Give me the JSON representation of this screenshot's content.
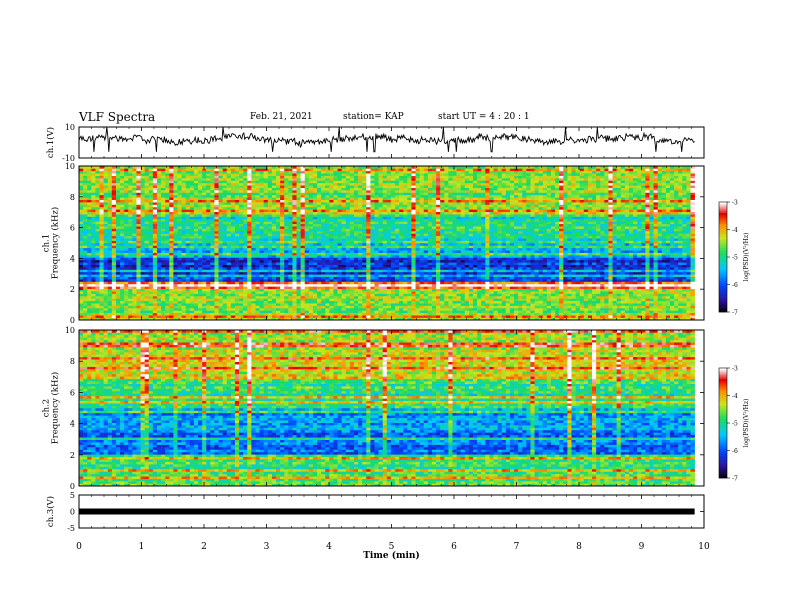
{
  "header": {
    "title": "VLF Spectra",
    "date": "Feb. 21, 2021",
    "station": "station= KAP",
    "start": "start  UT =   4 : 20 : 1"
  },
  "chart_data": [
    {
      "type": "line",
      "ylabel": "ch.1(V)",
      "ylim": [
        -10,
        10
      ],
      "yticks": [
        "10",
        "-10"
      ],
      "x_range": [
        0,
        9.85
      ],
      "baseline": 2,
      "amplitude": 5,
      "color": "#000000"
    },
    {
      "type": "heatmap",
      "ylabel": "ch.1\nFrequency (kHz)",
      "ylim": [
        0,
        10
      ],
      "yticks": [
        "0",
        "2",
        "4",
        "6",
        "8",
        "10"
      ],
      "x_range": [
        0,
        9.85
      ],
      "colorbar": {
        "label": "log(PSD)(V²/Hz)",
        "range": [
          -7,
          -3
        ],
        "ticks": [
          "-3",
          "-4",
          "-5",
          "-6",
          "-7"
        ]
      },
      "band_profile": [
        {
          "f": [
            0,
            2
          ],
          "level": -4.5
        },
        {
          "f": [
            2,
            2.5
          ],
          "level": -3.6
        },
        {
          "f": [
            2.5,
            4
          ],
          "level": -6.2
        },
        {
          "f": [
            4,
            5
          ],
          "level": -5.6
        },
        {
          "f": [
            5,
            7
          ],
          "level": -5.0
        },
        {
          "f": [
            7,
            10
          ],
          "level": -4.6
        }
      ]
    },
    {
      "type": "heatmap",
      "ylabel": "ch.2\nFrequency (kHz)",
      "ylim": [
        0,
        10
      ],
      "yticks": [
        "0",
        "2",
        "4",
        "6",
        "8",
        "10"
      ],
      "x_range": [
        0,
        9.85
      ],
      "colorbar": {
        "label": "log(PSD)(V²/Hz)",
        "range": [
          -7,
          -3
        ],
        "ticks": [
          "-3",
          "-4",
          "-5",
          "-6",
          "-7"
        ]
      },
      "band_profile": [
        {
          "f": [
            0,
            2
          ],
          "level": -4.8
        },
        {
          "f": [
            2,
            3.5
          ],
          "level": -5.8
        },
        {
          "f": [
            3.5,
            5
          ],
          "level": -5.6
        },
        {
          "f": [
            5,
            7
          ],
          "level": -4.9
        },
        {
          "f": [
            7,
            10
          ],
          "level": -4.3
        }
      ]
    },
    {
      "type": "line",
      "ylabel": "ch.3(V)",
      "ylim": [
        -5,
        5
      ],
      "yticks": [
        "5",
        "0",
        "-5"
      ],
      "x_range": [
        0,
        9.85
      ],
      "values_constant": 0,
      "color": "#000000"
    }
  ],
  "x_axis": {
    "label": "Time  (min)",
    "lim": [
      0,
      10
    ],
    "ticks": [
      "0",
      "1",
      "2",
      "3",
      "4",
      "5",
      "6",
      "7",
      "8",
      "9",
      "10"
    ]
  }
}
